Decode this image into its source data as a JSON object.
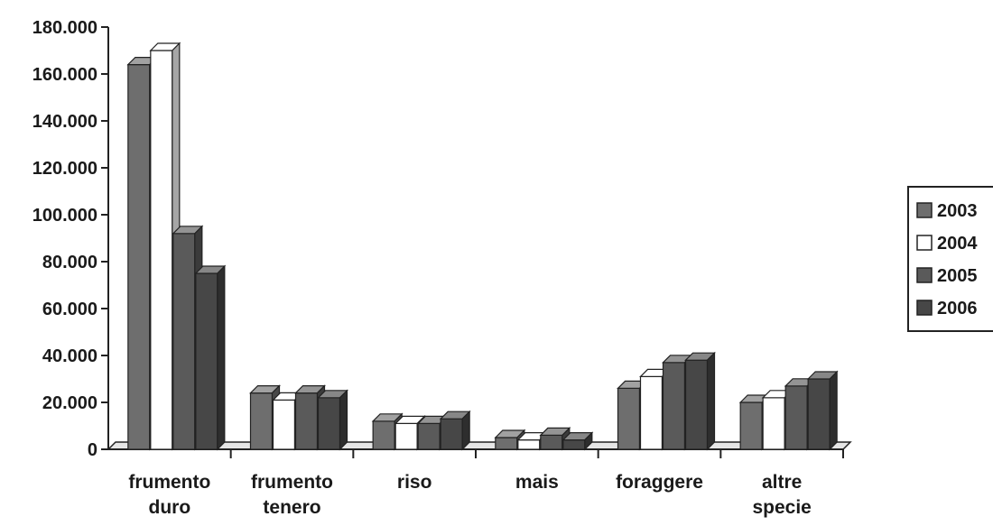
{
  "chart_data": {
    "type": "bar",
    "style": "3d-clustered",
    "title": "",
    "xlabel": "",
    "ylabel": "",
    "ylim": [
      0,
      180000
    ],
    "yticks": [
      0,
      20000,
      40000,
      60000,
      80000,
      100000,
      120000,
      140000,
      160000,
      180000
    ],
    "ytick_labels": [
      "0",
      "20.000",
      "40.000",
      "60.000",
      "80.000",
      "100.000",
      "120.000",
      "140.000",
      "160.000",
      "180.000"
    ],
    "categories": [
      {
        "line1": "frumento",
        "line2": "duro"
      },
      {
        "line1": "frumento",
        "line2": "tenero"
      },
      {
        "line1": "riso",
        "line2": ""
      },
      {
        "line1": "mais",
        "line2": ""
      },
      {
        "line1": "foraggere",
        "line2": ""
      },
      {
        "line1": "altre",
        "line2": "specie"
      }
    ],
    "series": [
      {
        "name": "2003",
        "color": "#6e6e6e",
        "values": [
          164000,
          24000,
          12000,
          5000,
          26000,
          20000
        ]
      },
      {
        "name": "2004",
        "color": "#ffffff",
        "values": [
          170000,
          21000,
          11000,
          4000,
          31000,
          22000
        ]
      },
      {
        "name": "2005",
        "color": "#5a5a5a",
        "values": [
          92000,
          24000,
          11000,
          6000,
          37000,
          27000
        ]
      },
      {
        "name": "2006",
        "color": "#474747",
        "values": [
          75000,
          22000,
          13000,
          4000,
          38000,
          30000
        ]
      }
    ],
    "grid": false,
    "legend_position": "right"
  }
}
